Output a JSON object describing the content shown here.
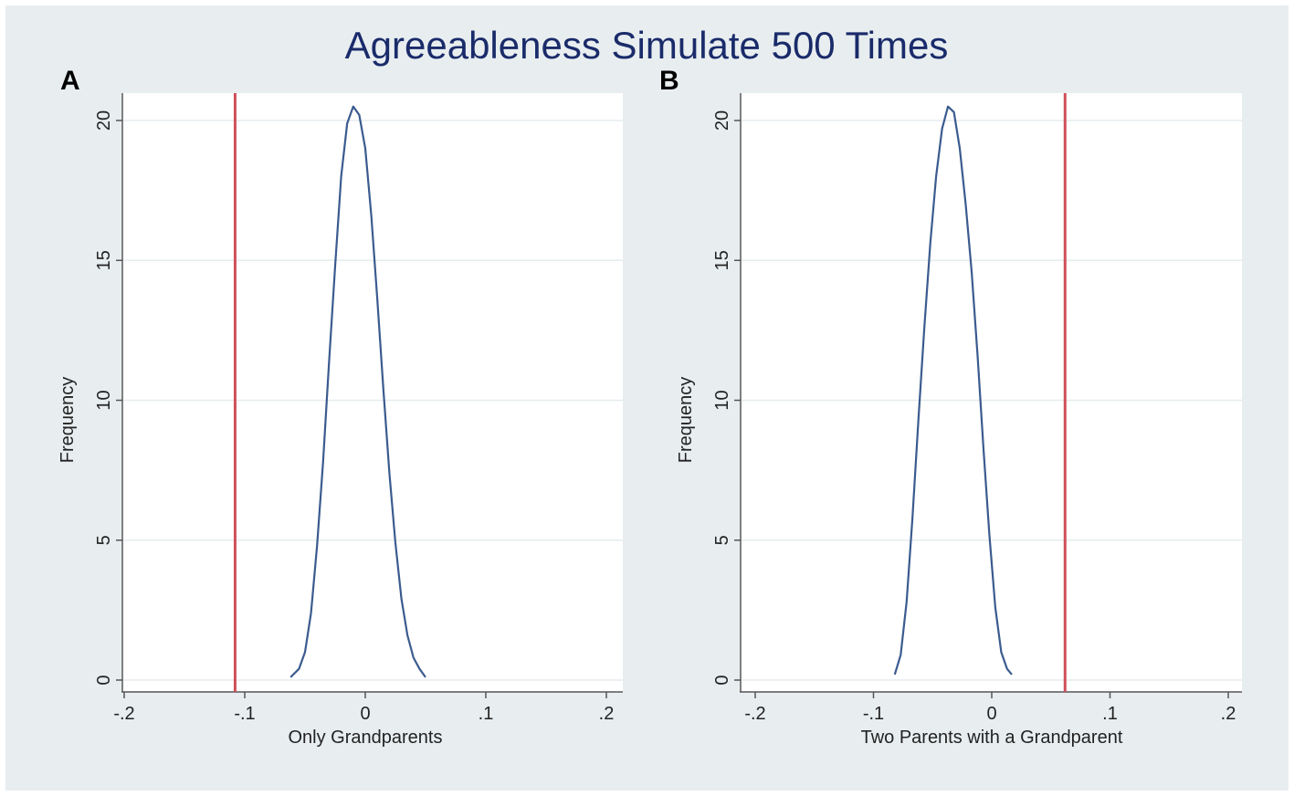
{
  "figure": {
    "title": "Agreeableness Simulate 500 Times",
    "colors": {
      "background": "#e8eef0",
      "plot_background": "#ffffff",
      "grid": "#e6ecee",
      "axis": "#555555",
      "density": "#3b5b8f",
      "reference_line": "#d0505a",
      "title": "#1a2b6a"
    }
  },
  "chart_data": [
    {
      "type": "line",
      "panel_label": "A",
      "title": "",
      "xlabel": "Only Grandparents",
      "ylabel": "Frequency",
      "xlim": [
        -0.2,
        0.2
      ],
      "ylim": [
        0,
        20
      ],
      "x_ticks": [
        -0.2,
        -0.1,
        0,
        0.1,
        0.2
      ],
      "x_tick_labels": [
        "-.2",
        "-.1",
        "0",
        ".1",
        ".2"
      ],
      "y_ticks": [
        0,
        5,
        10,
        15,
        20
      ],
      "y_tick_labels": [
        "0",
        "5",
        "10",
        "15",
        "20"
      ],
      "grid": true,
      "reference_line_x": -0.108,
      "series": [
        {
          "x": [
            -0.062,
            -0.055,
            -0.05,
            -0.045,
            -0.04,
            -0.035,
            -0.03,
            -0.025,
            -0.02,
            -0.015,
            -0.01,
            -0.005,
            0.0,
            0.005,
            0.01,
            0.015,
            0.02,
            0.025,
            0.03,
            0.035,
            0.04,
            0.045,
            0.05
          ],
          "y": [
            0.1,
            0.4,
            1.0,
            2.4,
            4.8,
            7.8,
            11.4,
            14.8,
            18.0,
            19.9,
            20.5,
            20.2,
            19.0,
            16.6,
            13.6,
            10.4,
            7.4,
            4.9,
            2.9,
            1.6,
            0.8,
            0.4,
            0.1
          ]
        }
      ]
    },
    {
      "type": "line",
      "panel_label": "B",
      "title": "",
      "xlabel": "Two Parents with a Grandparent",
      "ylabel": "Frequency",
      "xlim": [
        -0.2,
        0.2
      ],
      "ylim": [
        0,
        20
      ],
      "x_ticks": [
        -0.2,
        -0.1,
        0,
        0.1,
        0.2
      ],
      "x_tick_labels": [
        "-.2",
        "-.1",
        "0",
        ".1",
        ".2"
      ],
      "y_ticks": [
        0,
        5,
        10,
        15,
        20
      ],
      "y_tick_labels": [
        "0",
        "5",
        "10",
        "15",
        "20"
      ],
      "grid": true,
      "reference_line_x": 0.062,
      "series": [
        {
          "x": [
            -0.082,
            -0.077,
            -0.072,
            -0.067,
            -0.062,
            -0.057,
            -0.052,
            -0.047,
            -0.042,
            -0.037,
            -0.032,
            -0.027,
            -0.022,
            -0.017,
            -0.012,
            -0.007,
            -0.002,
            0.003,
            0.008,
            0.013,
            0.017
          ],
          "y": [
            0.2,
            0.9,
            2.8,
            5.8,
            9.3,
            12.6,
            15.6,
            18.0,
            19.7,
            20.5,
            20.3,
            19.0,
            17.0,
            14.6,
            11.6,
            8.3,
            5.2,
            2.6,
            1.0,
            0.4,
            0.2
          ]
        }
      ]
    }
  ]
}
